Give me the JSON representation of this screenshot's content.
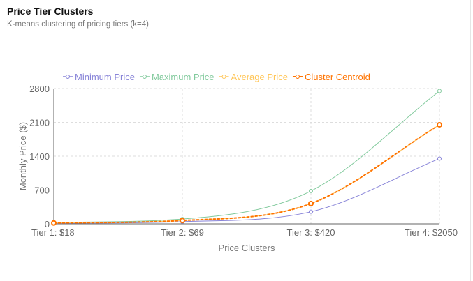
{
  "header": {
    "title": "Price Tier Clusters",
    "subtitle": "K-means clustering of pricing tiers (k=4)"
  },
  "chart_data": {
    "type": "line",
    "title": "",
    "xlabel": "Price Clusters",
    "ylabel": "Monthly Price ($)",
    "categories": [
      "Tier 1: $18",
      "Tier 2: $69",
      "Tier 3: $420",
      "Tier 4: $2050"
    ],
    "ylim": [
      0,
      2800
    ],
    "yticks": [
      0,
      700,
      1400,
      2100,
      2800
    ],
    "grid": true,
    "legend_position": "top",
    "series": [
      {
        "name": "Minimum Price",
        "values": [
          10,
          45,
          250,
          1350
        ],
        "color": "#8884d8",
        "dashed": false
      },
      {
        "name": "Maximum Price",
        "values": [
          30,
          100,
          680,
          2750
        ],
        "color": "#82ca9d",
        "dashed": false
      },
      {
        "name": "Average Price",
        "values": [
          18,
          69,
          420,
          2050
        ],
        "color": "#ffc658",
        "dashed": false
      },
      {
        "name": "Cluster Centroid",
        "values": [
          18,
          69,
          420,
          2050
        ],
        "color": "#ff7300",
        "dashed": true
      }
    ]
  }
}
